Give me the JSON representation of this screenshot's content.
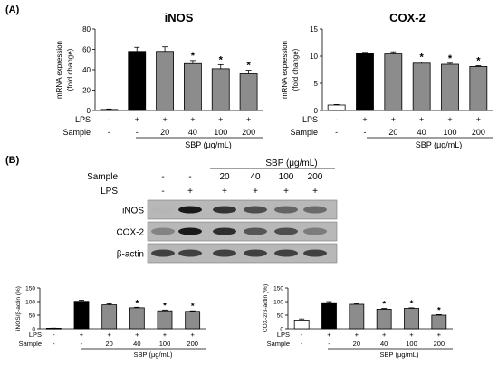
{
  "panels": {
    "a_label": "(A)",
    "b_label": "(B)"
  },
  "colors": {
    "ctrl": "#ffffff",
    "lps": "#000000",
    "sbp_a": "#8c8c8c",
    "sbp_b": "#8c8c8c"
  },
  "chart_data": [
    {
      "id": "inos_mrna",
      "type": "bar",
      "title": "iNOS",
      "ylabel": [
        "mRNA expression",
        "(fold change)"
      ],
      "ylim": [
        0,
        80
      ],
      "yticks": [
        "0",
        "20",
        "40",
        "60",
        "80"
      ],
      "categories": [
        "control",
        "LPS",
        "20",
        "40",
        "100",
        "200"
      ],
      "values": [
        1,
        58,
        58,
        46,
        41,
        36
      ],
      "errors": [
        0.5,
        4,
        4.5,
        3,
        4,
        3.5
      ],
      "sig": [
        "",
        "",
        "",
        "*",
        "*",
        "*"
      ],
      "lps_row": [
        "-",
        "+",
        "+",
        "+",
        "+",
        "+"
      ],
      "sample_row": [
        "-",
        "-",
        "20",
        "40",
        "100",
        "200"
      ],
      "row_labels": [
        "LPS",
        "Sample"
      ],
      "group_label": "SBP (μg/mL)"
    },
    {
      "id": "cox2_mrna",
      "type": "bar",
      "title": "COX-2",
      "ylabel": [
        "mRNA expression",
        "(fold change)"
      ],
      "ylim": [
        0,
        15
      ],
      "yticks": [
        "0",
        "5",
        "10",
        "15"
      ],
      "categories": [
        "control",
        "LPS",
        "20",
        "40",
        "100",
        "200"
      ],
      "values": [
        1,
        10.6,
        10.4,
        8.7,
        8.5,
        8.1
      ],
      "errors": [
        0.1,
        0.1,
        0.4,
        0.2,
        0.2,
        0.15
      ],
      "sig": [
        "",
        "",
        "",
        "*",
        "*",
        "*"
      ],
      "lps_row": [
        "-",
        "+",
        "+",
        "+",
        "+",
        "+"
      ],
      "sample_row": [
        "-",
        "-",
        "20",
        "40",
        "100",
        "200"
      ],
      "row_labels": [
        "LPS",
        "Sample"
      ],
      "group_label": "SBP (μg/mL)"
    },
    {
      "id": "inos_protein",
      "type": "bar",
      "title": "",
      "ylabel": [
        "iNOS/β-actin (%)"
      ],
      "ylim": [
        0,
        150
      ],
      "yticks": [
        "0",
        "50",
        "100",
        "150"
      ],
      "categories": [
        "control",
        "LPS",
        "20",
        "40",
        "100",
        "200"
      ],
      "values": [
        2,
        101,
        88,
        77,
        66,
        64
      ],
      "errors": [
        0.5,
        4,
        4,
        2,
        3,
        2
      ],
      "sig": [
        "",
        "",
        "",
        "*",
        "*",
        "*"
      ],
      "lps_row": [
        "-",
        "+",
        "+",
        "+",
        "+",
        "+"
      ],
      "sample_row": [
        "-",
        "-",
        "20",
        "40",
        "100",
        "200"
      ],
      "row_labels": [
        "LPS",
        "Sample"
      ],
      "group_label": "SBP (μg/mL)"
    },
    {
      "id": "cox2_protein",
      "type": "bar",
      "title": "",
      "ylabel": [
        "COX-2/β-actin (%)"
      ],
      "ylim": [
        0,
        150
      ],
      "yticks": [
        "0",
        "50",
        "100",
        "150"
      ],
      "categories": [
        "control",
        "LPS",
        "20",
        "40",
        "100",
        "200"
      ],
      "values": [
        32,
        96,
        90,
        72,
        75,
        50
      ],
      "errors": [
        4,
        4,
        3,
        3,
        2,
        2
      ],
      "sig": [
        "",
        "",
        "",
        "*",
        "*",
        "*"
      ],
      "lps_row": [
        "-",
        "+",
        "+",
        "+",
        "+",
        "+"
      ],
      "sample_row": [
        "-",
        "-",
        "20",
        "40",
        "100",
        "200"
      ],
      "row_labels": [
        "LPS",
        "Sample"
      ],
      "group_label": "SBP (μg/mL)"
    }
  ],
  "blot": {
    "group_label": "SBP (μg/mL)",
    "sample_row_label": "Sample",
    "lps_row_label": "LPS",
    "sample_row": [
      "-",
      "-",
      "20",
      "40",
      "100",
      "200"
    ],
    "lps_row": [
      "-",
      "+",
      "+",
      "+",
      "+",
      "+"
    ],
    "bands": [
      {
        "label": "iNOS",
        "intensity": [
          0.02,
          1.0,
          0.9,
          0.78,
          0.68,
          0.65
        ]
      },
      {
        "label": "COX-2",
        "intensity": [
          0.5,
          1.0,
          0.92,
          0.75,
          0.78,
          0.55
        ]
      },
      {
        "label": "β-actin",
        "intensity": [
          0.85,
          0.85,
          0.85,
          0.85,
          0.85,
          0.85
        ]
      }
    ]
  }
}
